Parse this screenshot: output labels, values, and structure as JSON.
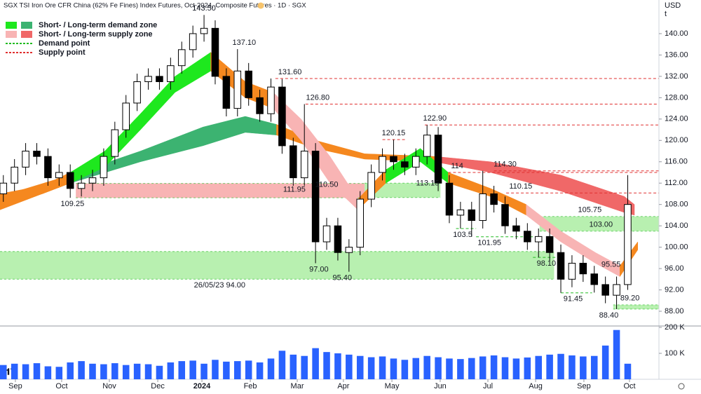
{
  "chart_data": {
    "type": "candlestick",
    "title": "SGX TSI Iron Ore CFR China (62% Fe Fines) Index Futures, Oct-2024, Composite Futures · 1D · SGX",
    "currency": "USD",
    "unit": "t",
    "xlim": [
      -0.3,
      58.8
    ],
    "ylim": [
      85.24,
      146.3
    ],
    "yticks": [
      {
        "value": 88,
        "label": "88.00"
      },
      {
        "value": 92,
        "label": "92.00"
      },
      {
        "value": 96,
        "label": "96.00"
      },
      {
        "value": 100,
        "label": "100.00"
      },
      {
        "value": 104,
        "label": "104.00"
      },
      {
        "value": 108,
        "label": "108.00"
      },
      {
        "value": 112,
        "label": "112.00"
      },
      {
        "value": 116,
        "label": "116.00"
      },
      {
        "value": 120,
        "label": "120.00"
      },
      {
        "value": 124,
        "label": "124.00"
      },
      {
        "value": 128,
        "label": "128.00"
      },
      {
        "value": 132,
        "label": "132.00"
      },
      {
        "value": 136,
        "label": "136.00"
      },
      {
        "value": 140,
        "label": "140.00"
      }
    ],
    "xticks": [
      {
        "value": 1.08,
        "label": "Sep"
      },
      {
        "value": 5.23,
        "label": "Oct"
      },
      {
        "value": 9.51,
        "label": "Nov"
      },
      {
        "value": 13.85,
        "label": "Dec"
      },
      {
        "value": 17.81,
        "label": "2024",
        "bold": true
      },
      {
        "value": 22.15,
        "label": "Feb"
      },
      {
        "value": 26.36,
        "label": "Mar"
      },
      {
        "value": 30.5,
        "label": "Apr"
      },
      {
        "value": 34.85,
        "label": "May"
      },
      {
        "value": 39.18,
        "label": "Jun"
      },
      {
        "value": 43.46,
        "label": "Jul"
      },
      {
        "value": 47.74,
        "label": "Aug"
      },
      {
        "value": 52.07,
        "label": "Sep"
      },
      {
        "value": 56.16,
        "label": "Oct"
      }
    ],
    "open": [
      110,
      112,
      115,
      118,
      117,
      113,
      114,
      111,
      112,
      113,
      117,
      122,
      127,
      131,
      132,
      131,
      134,
      137,
      140,
      141,
      132,
      126,
      133,
      128,
      125,
      130,
      119,
      113,
      118,
      101,
      104,
      99,
      100,
      109,
      114,
      117,
      116,
      115,
      117,
      121,
      112,
      106,
      107,
      105,
      110,
      108,
      104,
      103,
      101,
      102,
      99,
      94,
      97,
      95,
      93,
      91,
      93
    ],
    "high": [
      113.5,
      116.5,
      119.5,
      119.5,
      118.5,
      115.5,
      115.5,
      113.5,
      114.5,
      118.5,
      123.5,
      128.5,
      132.5,
      133.5,
      133.5,
      135.5,
      138.5,
      141.5,
      143.5,
      142.5,
      133.5,
      137.1,
      134.5,
      129.5,
      131.6,
      131.5,
      120.5,
      126.8,
      119.5,
      105.5,
      105.5,
      101.5,
      110.5,
      115.5,
      118.5,
      120.15,
      117.5,
      118.5,
      122.9,
      122.5,
      113.5,
      108.5,
      108.5,
      114.3,
      111.5,
      109.5,
      105.5,
      104.5,
      103.5,
      103.5,
      100.5,
      98.5,
      98.5,
      96.5,
      94.5,
      94.5,
      113.5
    ],
    "low": [
      108.5,
      110.5,
      113.5,
      115.5,
      111.5,
      111.5,
      109.25,
      109.5,
      110.5,
      111.5,
      115.5,
      120.5,
      125.5,
      129.5,
      129.5,
      129.5,
      132.5,
      135.5,
      138.5,
      130.5,
      124.5,
      124.5,
      126.5,
      123.5,
      123.5,
      117.5,
      111.5,
      111.5,
      97,
      99.5,
      97.5,
      95.4,
      98.5,
      107.5,
      112.5,
      114.5,
      113.5,
      113.5,
      115.5,
      110.5,
      104.5,
      103.5,
      101.95,
      103.5,
      106.5,
      102.5,
      101.5,
      99.5,
      98.1,
      97.5,
      91.45,
      92.5,
      93.5,
      91.5,
      89.5,
      88.4,
      92
    ],
    "close": [
      112,
      115,
      118,
      117,
      113,
      114,
      111,
      112,
      113,
      117,
      122,
      127,
      131,
      132,
      131,
      134,
      137,
      140,
      141,
      132,
      126,
      133,
      128,
      125,
      130,
      119,
      113,
      118,
      101,
      104,
      99,
      100,
      109,
      114,
      117,
      116,
      115,
      117,
      121,
      112,
      106,
      107,
      105,
      110,
      108,
      104,
      103,
      101,
      102,
      99,
      94,
      97,
      95,
      93,
      91,
      93,
      108
    ],
    "up_color": "#ffffff",
    "down_color": "#000000",
    "volume": {
      "color": "#2962ff",
      "ylim": [
        0,
        205.4
      ],
      "yticks": [
        {
          "value": 200,
          "label": "200 K"
        },
        {
          "value": 100,
          "label": "100 K"
        }
      ],
      "values": [
        55,
        60,
        58,
        62,
        50,
        48,
        65,
        70,
        60,
        58,
        62,
        55,
        60,
        58,
        52,
        65,
        70,
        72,
        60,
        75,
        68,
        70,
        72,
        65,
        80,
        110,
        95,
        90,
        120,
        105,
        100,
        95,
        90,
        85,
        88,
        80,
        75,
        82,
        90,
        85,
        80,
        78,
        82,
        88,
        92,
        85,
        80,
        84,
        90,
        95,
        98,
        92,
        88,
        90,
        130,
        190,
        60
      ]
    },
    "zones": [
      {
        "x": [
          6.5,
          32.4
        ],
        "y": [
          109.25,
          111.95
        ],
        "color": "#f8b4b4"
      },
      {
        "x": [
          -0.3,
          49.4
        ],
        "y": [
          94,
          99.2
        ],
        "color": "#b8f0b0"
      },
      {
        "x": [
          32.4,
          39.2
        ],
        "y": [
          109.3,
          112
        ],
        "color": "#b8f0b0"
      },
      {
        "x": [
          48.1,
          58.8
        ],
        "y": [
          103,
          105.75
        ],
        "color": "#b8f0b0"
      },
      {
        "x": [
          54.7,
          58.8
        ],
        "y": [
          88.4,
          89.2
        ],
        "color": "#b8f0b0"
      }
    ],
    "levels": [
      {
        "x": [
          24.4,
          58.8
        ],
        "value": 131.6,
        "color": "#e03030"
      },
      {
        "x": [
          27.1,
          58.8
        ],
        "value": 126.8,
        "color": "#e03030"
      },
      {
        "x": [
          37.8,
          58.8
        ],
        "value": 122.9,
        "color": "#e03030"
      },
      {
        "x": [
          34.0,
          36.2
        ],
        "value": 120.15,
        "color": "#e03030"
      },
      {
        "x": [
          39.9,
          58.8
        ],
        "value": 114,
        "color": "#e03030"
      },
      {
        "x": [
          44.0,
          58.8
        ],
        "value": 114.3,
        "color": "#e03030"
      },
      {
        "x": [
          45.1,
          58.8
        ],
        "value": 110.15,
        "color": "#e03030"
      },
      {
        "x": [
          40.6,
          42.4
        ],
        "value": 103.5,
        "color": "#22bb22"
      },
      {
        "x": [
          42.4,
          47.5
        ],
        "value": 101.95,
        "color": "#22bb22"
      },
      {
        "x": [
          47.5,
          50.0
        ],
        "value": 98.1,
        "color": "#22bb22"
      },
      {
        "x": [
          50.0,
          52.8
        ],
        "value": 91.45,
        "color": "#22bb22"
      }
    ],
    "ribbons": [
      {
        "x": [
          -0.3,
          6.0,
          12.3,
          17.9,
          21.7,
          24.5,
          28.0,
          32.4,
          38.7,
          43.7,
          50.0,
          55.7,
          56.6
        ],
        "lower": [
          107,
          112,
          116,
          119,
          121.5,
          121,
          118.5,
          116.5,
          116,
          114,
          110.5,
          106.5,
          106
        ],
        "upper": [
          109.5,
          113.5,
          118,
          122.5,
          124.5,
          123,
          120,
          117.5,
          117,
          116,
          113.5,
          109.5,
          108
        ],
        "colors": [
          "#f5881f",
          "#3cb371",
          "#3cb371",
          "#3cb371",
          "#3cb371",
          "#f5881f",
          "#f5881f",
          "#f5881f",
          "#f06868",
          "#f06868",
          "#f06868",
          "#f06868"
        ]
      },
      {
        "x": [
          -0.3,
          3.5,
          6.0,
          9.1,
          12.3,
          15.4,
          18.6,
          21.7,
          24.2,
          26.7,
          29.3,
          31.8,
          34.3,
          37.4,
          39.9,
          43.7,
          46.9,
          50.0,
          53.1,
          55.3,
          56.9
        ],
        "lower": [
          108,
          110,
          112,
          115,
          122,
          129,
          133,
          128,
          126,
          120,
          112,
          107,
          112,
          116,
          112,
          109.5,
          106,
          101,
          97,
          94.5,
          99.5
        ],
        "upper": [
          110,
          111.5,
          114,
          118,
          125,
          132,
          136.5,
          131,
          129,
          124,
          117,
          109,
          114.5,
          118.5,
          114,
          111,
          108,
          103,
          99,
          96.5,
          101
        ],
        "colors": [
          "#f5881f",
          "#f5881f",
          "#1ee81e",
          "#1ee81e",
          "#1ee81e",
          "#1ee81e",
          "#f5881f",
          "#f5881f",
          "#f8b4b4",
          "#f8b4b4",
          "#f8b4b4",
          "#f5881f",
          "#1ee81e",
          "#1ee81e",
          "#f5881f",
          "#f5881f",
          "#f8b4b4",
          "#f8b4b4",
          "#f8b4b4",
          "#f5881f"
        ]
      }
    ],
    "annotations": [
      {
        "label": "143.50",
        "value": 143.5,
        "x": 18.0,
        "place": "above"
      },
      {
        "label": "137.10",
        "value": 137.1,
        "x": 21.6,
        "place": "above"
      },
      {
        "label": "131.60",
        "value": 131.6,
        "x": 25.7,
        "place": "above"
      },
      {
        "label": "126.80",
        "value": 126.8,
        "x": 28.2,
        "place": "above"
      },
      {
        "label": "122.90",
        "value": 122.9,
        "x": 38.7,
        "place": "above"
      },
      {
        "label": "120.15",
        "value": 120.15,
        "x": 35.0,
        "place": "above"
      },
      {
        "label": "114",
        "value": 114,
        "x": 40.7,
        "place": "above"
      },
      {
        "label": "114.30",
        "value": 114.3,
        "x": 45.0,
        "place": "above"
      },
      {
        "label": "110.15",
        "value": 110.15,
        "x": 46.4,
        "place": "above"
      },
      {
        "label": "113.15",
        "value": 113.15,
        "x": 38.05,
        "place": "below"
      },
      {
        "label": "111.95",
        "value": 111.95,
        "x": 26.1,
        "place": "below"
      },
      {
        "label": "110.50",
        "value": 110.5,
        "x": 29.0,
        "place": "above"
      },
      {
        "label": "109.25",
        "value": 109.25,
        "x": 6.2,
        "place": "below"
      },
      {
        "label": "105.75",
        "value": 105.75,
        "x": 52.6,
        "place": "above"
      },
      {
        "label": "103.00",
        "value": 103,
        "x": 53.6,
        "place": "above"
      },
      {
        "label": "103.5",
        "value": 103.5,
        "x": 41.2,
        "place": "below"
      },
      {
        "label": "101.95",
        "value": 101.95,
        "x": 43.6,
        "place": "below"
      },
      {
        "label": "98.10",
        "value": 98.1,
        "x": 48.7,
        "place": "below"
      },
      {
        "label": "97.00",
        "value": 97,
        "x": 28.3,
        "place": "below"
      },
      {
        "label": "95.55",
        "value": 95.55,
        "x": 54.5,
        "place": "above"
      },
      {
        "label": "95.40",
        "value": 95.4,
        "x": 30.4,
        "place": "below"
      },
      {
        "label": "91.45",
        "value": 91.45,
        "x": 51.1,
        "place": "below"
      },
      {
        "label": "89.20",
        "value": 89.2,
        "x": 56.2,
        "place": "above"
      },
      {
        "label": "88.40",
        "value": 88.4,
        "x": 54.3,
        "place": "below"
      },
      {
        "label": "26/05/23 94.00",
        "value": 94,
        "x": 19.4,
        "place": "below"
      }
    ],
    "legend": {
      "position": "top-left",
      "items": [
        {
          "name": "Short- / Long-term demand zone",
          "colors": [
            "#1ee81e",
            "#3cb371"
          ],
          "style": "box"
        },
        {
          "name": "Short- / Long-term supply zone",
          "colors": [
            "#f8b4b4",
            "#f06868"
          ],
          "style": "box"
        },
        {
          "name": "Demand point",
          "colors": [
            "#22bb22"
          ],
          "style": "dashed"
        },
        {
          "name": "Supply point",
          "colors": [
            "#e03030"
          ],
          "style": "dashed"
        }
      ]
    }
  }
}
